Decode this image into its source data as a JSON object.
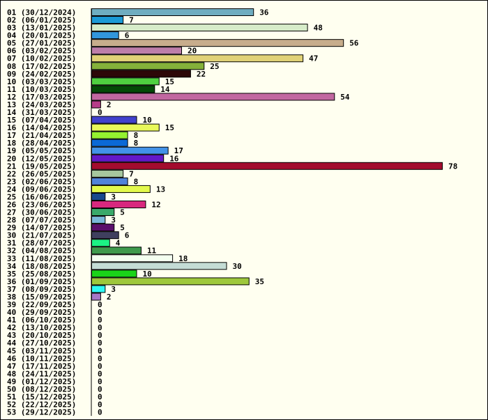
{
  "chart_data": {
    "type": "bar",
    "orientation": "horizontal",
    "title": "",
    "xlabel": "",
    "ylabel": "",
    "grid": false,
    "legend": "none",
    "background": "#fffff0",
    "categories": [
      "01 (30/12/2024)",
      "02 (06/01/2025)",
      "03 (13/01/2025)",
      "04 (20/01/2025)",
      "05 (27/01/2025)",
      "06 (03/02/2025)",
      "07 (10/02/2025)",
      "08 (17/02/2025)",
      "09 (24/02/2025)",
      "10 (03/03/2025)",
      "11 (10/03/2025)",
      "12 (17/03/2025)",
      "13 (24/03/2025)",
      "14 (31/03/2025)",
      "15 (07/04/2025)",
      "16 (14/04/2025)",
      "17 (21/04/2025)",
      "18 (28/04/2025)",
      "19 (05/05/2025)",
      "20 (12/05/2025)",
      "21 (19/05/2025)",
      "22 (26/05/2025)",
      "23 (02/06/2025)",
      "24 (09/06/2025)",
      "25 (16/06/2025)",
      "26 (23/06/2025)",
      "27 (30/06/2025)",
      "28 (07/07/2025)",
      "29 (14/07/2025)",
      "30 (21/07/2025)",
      "31 (28/07/2025)",
      "32 (04/08/2025)",
      "33 (11/08/2025)",
      "34 (18/08/2025)",
      "35 (25/08/2025)",
      "36 (01/09/2025)",
      "37 (08/09/2025)",
      "38 (15/09/2025)",
      "39 (22/09/2025)",
      "40 (29/09/2025)",
      "41 (06/10/2025)",
      "42 (13/10/2025)",
      "43 (20/10/2025)",
      "44 (27/10/2025)",
      "45 (03/11/2025)",
      "46 (10/11/2025)",
      "47 (17/11/2025)",
      "48 (24/11/2025)",
      "49 (01/12/2025)",
      "50 (08/12/2025)",
      "51 (15/12/2025)",
      "52 (22/12/2025)",
      "53 (29/12/2025)"
    ],
    "values": [
      36,
      7,
      48,
      6,
      56,
      20,
      47,
      25,
      22,
      15,
      14,
      54,
      2,
      0,
      10,
      15,
      8,
      8,
      17,
      16,
      78,
      7,
      8,
      13,
      3,
      12,
      5,
      3,
      5,
      6,
      4,
      11,
      18,
      30,
      10,
      35,
      3,
      2,
      0,
      0,
      0,
      0,
      0,
      0,
      0,
      0,
      0,
      0,
      0,
      0,
      0,
      0,
      0
    ],
    "colors": [
      "#6fadc0",
      "#1b9ad6",
      "#d6ecc9",
      "#3296dc",
      "#c7ad8c",
      "#bd7eaa",
      "#e1d277",
      "#84b13a",
      "#2d0808",
      "#4fd040",
      "#044a07",
      "#c167a0",
      "#b63c89",
      "#ffffff",
      "#4141cc",
      "#e8f85a",
      "#94f230",
      "#0b69d6",
      "#4393e8",
      "#6419c8",
      "#a30c2e",
      "#a6c79e",
      "#5183d9",
      "#e3f94c",
      "#19488c",
      "#d8287e",
      "#3aa96a",
      "#7ab8d8",
      "#5a0f6b",
      "#3f3f5e",
      "#1cf284",
      "#3e9a4c",
      "#f4fff0",
      "#c4dcd5",
      "#1ad419",
      "#9ec83c",
      "#2ef8f3",
      "#a577c7",
      "#ffffff",
      "#ffffff",
      "#ffffff",
      "#ffffff",
      "#ffffff",
      "#ffffff",
      "#ffffff",
      "#ffffff",
      "#ffffff",
      "#ffffff",
      "#ffffff",
      "#ffffff",
      "#ffffff",
      "#ffffff",
      "#ffffff"
    ]
  }
}
